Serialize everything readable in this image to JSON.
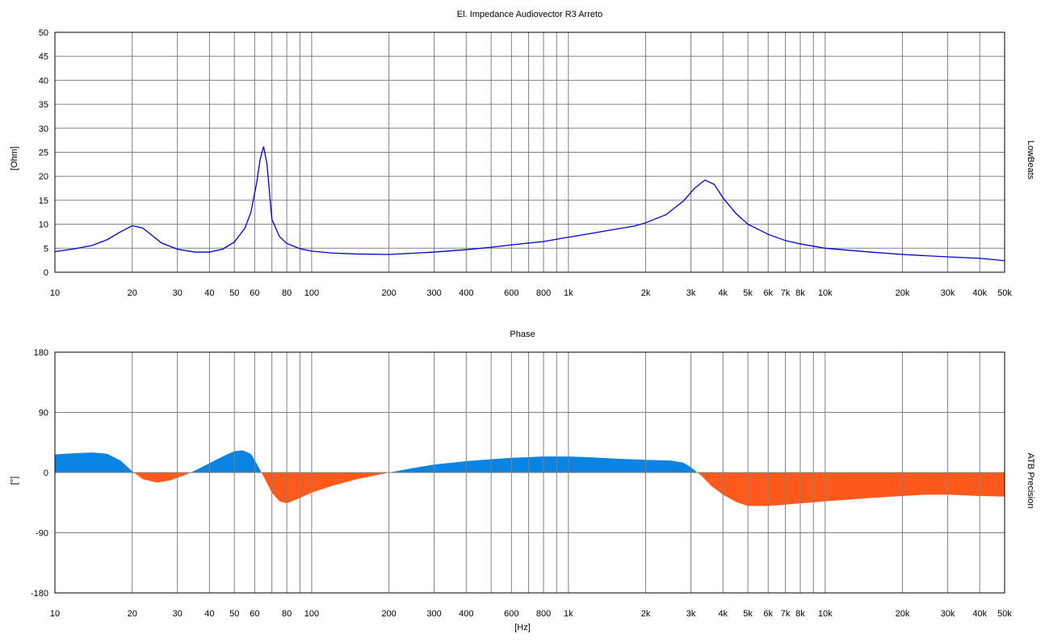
{
  "chart_data": [
    {
      "type": "line",
      "title": "El. Impedance Audiovector R3 Arreto",
      "xlabel": "",
      "ylabel": "[Ohm]",
      "side_label": "LowBeats",
      "x_scale": "log",
      "xlim": [
        10,
        50000
      ],
      "ylim": [
        0,
        50
      ],
      "grid": true,
      "line_color": "#0000cc",
      "y_ticks": [
        0,
        5,
        10,
        15,
        20,
        25,
        30,
        35,
        40,
        45,
        50
      ],
      "x_ticks": [
        {
          "value": 10,
          "label": "10"
        },
        {
          "value": 20,
          "label": "20"
        },
        {
          "value": 30,
          "label": "30"
        },
        {
          "value": 40,
          "label": "40"
        },
        {
          "value": 50,
          "label": "50"
        },
        {
          "value": 60,
          "label": "60"
        },
        {
          "value": 80,
          "label": "80"
        },
        {
          "value": 100,
          "label": "100"
        },
        {
          "value": 200,
          "label": "200"
        },
        {
          "value": 300,
          "label": "300"
        },
        {
          "value": 400,
          "label": "400"
        },
        {
          "value": 600,
          "label": "600"
        },
        {
          "value": 800,
          "label": "800"
        },
        {
          "value": 1000,
          "label": "1k"
        },
        {
          "value": 2000,
          "label": "2k"
        },
        {
          "value": 3000,
          "label": "3k"
        },
        {
          "value": 4000,
          "label": "4k"
        },
        {
          "value": 5000,
          "label": "5k"
        },
        {
          "value": 6000,
          "label": "6k"
        },
        {
          "value": 7000,
          "label": "7k"
        },
        {
          "value": 8000,
          "label": "8k"
        },
        {
          "value": 10000,
          "label": "10k"
        },
        {
          "value": 20000,
          "label": "20k"
        },
        {
          "value": 30000,
          "label": "30k"
        },
        {
          "value": 40000,
          "label": "40k"
        },
        {
          "value": 50000,
          "label": "50k"
        }
      ],
      "series": [
        {
          "x": [
            10,
            12,
            14,
            16,
            18,
            20,
            22,
            24,
            26,
            30,
            35,
            40,
            45,
            50,
            55,
            58,
            61,
            63,
            65,
            67,
            70,
            75,
            80,
            90,
            100,
            120,
            150,
            200,
            300,
            400,
            500,
            600,
            800,
            1000,
            1200,
            1500,
            1800,
            2000,
            2400,
            2800,
            3100,
            3400,
            3700,
            4000,
            4500,
            5000,
            6000,
            7000,
            8000,
            10000,
            15000,
            20000,
            30000,
            40000,
            50000
          ],
          "y": [
            4.3,
            4.9,
            5.6,
            6.8,
            8.4,
            9.7,
            9.2,
            7.6,
            6.1,
            4.8,
            4.2,
            4.2,
            4.8,
            6.3,
            9.2,
            12.5,
            18.5,
            23.5,
            26.2,
            22.5,
            11.0,
            7.4,
            6.0,
            4.9,
            4.4,
            4.0,
            3.8,
            3.7,
            4.2,
            4.7,
            5.2,
            5.7,
            6.4,
            7.3,
            8.0,
            8.9,
            9.6,
            10.3,
            12.0,
            14.8,
            17.5,
            19.2,
            18.3,
            15.5,
            12.2,
            10.0,
            7.9,
            6.6,
            5.9,
            5.0,
            4.2,
            3.7,
            3.2,
            2.9,
            2.4
          ]
        }
      ]
    },
    {
      "type": "area",
      "title": "Phase",
      "xlabel": "[Hz]",
      "ylabel": "[°]",
      "side_label": "ATB Precision",
      "x_scale": "log",
      "xlim": [
        10,
        50000
      ],
      "ylim": [
        -180,
        180
      ],
      "grid": true,
      "positive_color": "#0a84e2",
      "negative_color": "#ff5a1c",
      "y_ticks": [
        -180,
        -90,
        0,
        90,
        180
      ],
      "x_ticks": [
        {
          "value": 10,
          "label": "10"
        },
        {
          "value": 20,
          "label": "20"
        },
        {
          "value": 30,
          "label": "30"
        },
        {
          "value": 40,
          "label": "40"
        },
        {
          "value": 50,
          "label": "50"
        },
        {
          "value": 60,
          "label": "60"
        },
        {
          "value": 80,
          "label": "80"
        },
        {
          "value": 100,
          "label": "100"
        },
        {
          "value": 200,
          "label": "200"
        },
        {
          "value": 300,
          "label": "300"
        },
        {
          "value": 400,
          "label": "400"
        },
        {
          "value": 600,
          "label": "600"
        },
        {
          "value": 800,
          "label": "800"
        },
        {
          "value": 1000,
          "label": "1k"
        },
        {
          "value": 2000,
          "label": "2k"
        },
        {
          "value": 3000,
          "label": "3k"
        },
        {
          "value": 4000,
          "label": "4k"
        },
        {
          "value": 5000,
          "label": "5k"
        },
        {
          "value": 6000,
          "label": "6k"
        },
        {
          "value": 7000,
          "label": "7k"
        },
        {
          "value": 8000,
          "label": "8k"
        },
        {
          "value": 10000,
          "label": "10k"
        },
        {
          "value": 20000,
          "label": "20k"
        },
        {
          "value": 30000,
          "label": "30k"
        },
        {
          "value": 40000,
          "label": "40k"
        },
        {
          "value": 50000,
          "label": "50k"
        }
      ],
      "series": [
        {
          "x": [
            10,
            12,
            14,
            16,
            18,
            20,
            22,
            25,
            28,
            32,
            36,
            40,
            45,
            50,
            54,
            58,
            61,
            65,
            70,
            75,
            80,
            90,
            100,
            120,
            150,
            200,
            250,
            300,
            400,
            500,
            600,
            800,
            1000,
            1200,
            1500,
            2000,
            2500,
            2800,
            3000,
            3300,
            3600,
            4000,
            4500,
            5000,
            6000,
            7000,
            8000,
            10000,
            15000,
            20000,
            25000,
            30000,
            40000,
            50000
          ],
          "y": [
            27,
            29,
            30,
            28,
            18,
            2,
            -10,
            -15,
            -12,
            -4,
            5,
            14,
            24,
            32,
            33,
            28,
            14,
            -6,
            -30,
            -43,
            -46,
            -38,
            -30,
            -20,
            -10,
            0,
            7,
            12,
            17,
            20,
            22,
            24,
            24,
            23,
            21,
            19,
            18,
            15,
            8,
            -5,
            -20,
            -33,
            -44,
            -50,
            -50,
            -48,
            -46,
            -43,
            -38,
            -35,
            -33,
            -33,
            -35,
            -36
          ]
        }
      ]
    }
  ]
}
